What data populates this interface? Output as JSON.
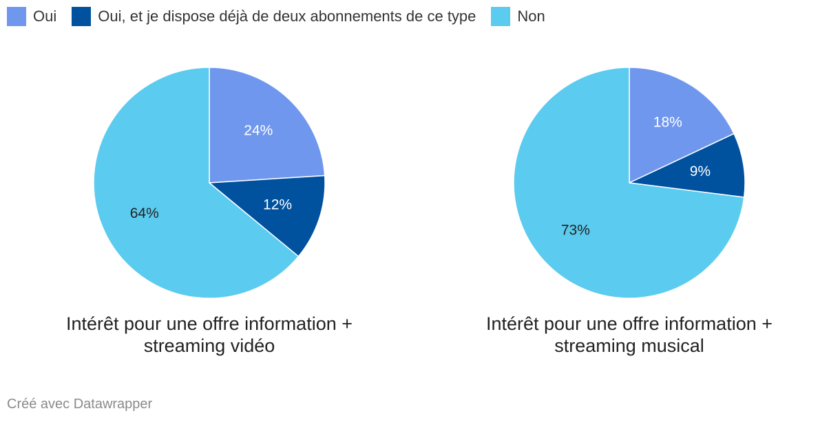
{
  "legend": [
    {
      "label": "Oui",
      "color": "#7097ee"
    },
    {
      "label": "Oui, et je dispose déjà de deux abonnements de ce type",
      "color": "#00519e"
    },
    {
      "label": "Non",
      "color": "#5bcbef"
    }
  ],
  "chart_data": [
    {
      "type": "pie",
      "title": "Intérêt pour une offre information + streaming vidéo",
      "slices": [
        {
          "label": "Oui",
          "value": 24,
          "display": "24%",
          "color": "#7097ee",
          "text_color": "#ffffff"
        },
        {
          "label": "Oui, et je dispose déjà de deux abonnements de ce type",
          "value": 12,
          "display": "12%",
          "color": "#00519e",
          "text_color": "#ffffff"
        },
        {
          "label": "Non",
          "value": 64,
          "display": "64%",
          "color": "#5bcbef",
          "text_color": "#222222"
        }
      ]
    },
    {
      "type": "pie",
      "title": "Intérêt pour une offre information + streaming musical",
      "slices": [
        {
          "label": "Oui",
          "value": 18,
          "display": "18%",
          "color": "#7097ee",
          "text_color": "#ffffff"
        },
        {
          "label": "Oui, et je dispose déjà de deux abonnements de ce type",
          "value": 9,
          "display": "9%",
          "color": "#00519e",
          "text_color": "#ffffff"
        },
        {
          "label": "Non",
          "value": 73,
          "display": "73%",
          "color": "#5bcbef",
          "text_color": "#222222"
        }
      ]
    }
  ],
  "credit": "Créé avec Datawrapper"
}
